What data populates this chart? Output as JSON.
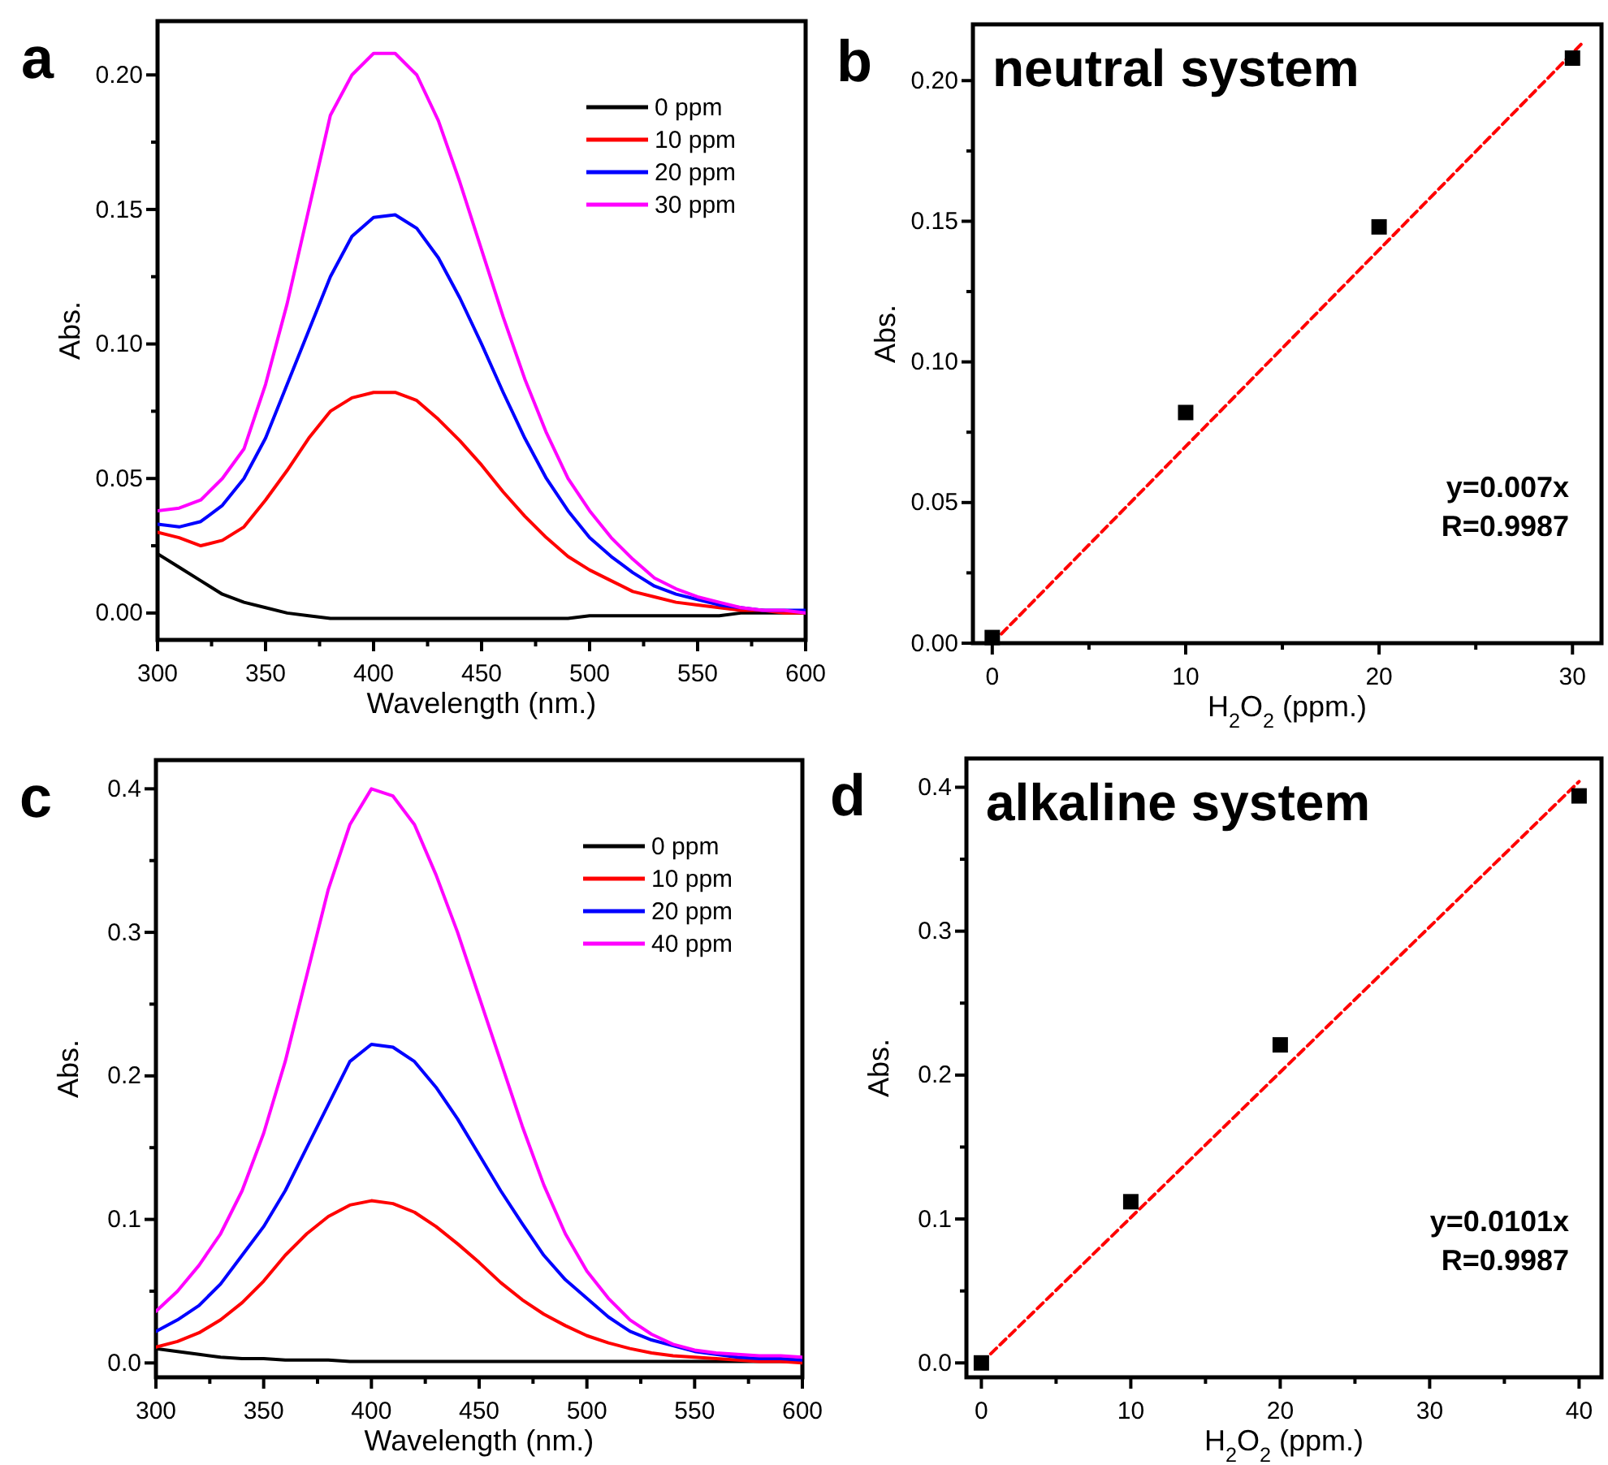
{
  "chart_data": [
    {
      "type": "line",
      "xlabel": "Wavelength (nm.)",
      "ylabel": "Abs.",
      "annotations": [
        "a"
      ],
      "legend": "top right",
      "x": [
        300,
        310,
        320,
        330,
        340,
        350,
        360,
        370,
        380,
        390,
        400,
        410,
        420,
        430,
        440,
        450,
        460,
        470,
        480,
        490,
        500,
        510,
        520,
        530,
        540,
        550,
        560,
        570,
        580,
        590,
        600
      ],
      "xlim": [
        300,
        600
      ],
      "ylim": [
        -0.01,
        0.22
      ],
      "xticks": [
        300,
        {
          "value": 325,
          "label": null
        },
        350,
        {
          "value": 375,
          "label": null
        },
        400,
        {
          "value": 425,
          "label": null
        },
        450,
        {
          "value": 475,
          "label": null
        },
        500,
        {
          "value": 525,
          "label": null
        },
        550,
        {
          "value": 575,
          "label": null
        },
        {
          "value": 600,
          "label": "600"
        }
      ],
      "yticks": [
        {
          "value": 0,
          "label": "0.00"
        },
        {
          "value": 0.025,
          "label": null
        },
        {
          "value": 0.05,
          "label": "0.05"
        },
        {
          "value": 0.075,
          "label": null
        },
        {
          "value": 0.1,
          "label": "0.10"
        },
        {
          "value": 0.125,
          "label": null
        },
        {
          "value": 0.15,
          "label": "0.15"
        },
        {
          "value": 0.175,
          "label": null
        },
        {
          "value": 0.2,
          "label": "0.20"
        }
      ],
      "series": [
        {
          "name": "0 ppm",
          "color": "#000000",
          "values": [
            0.022,
            0.017,
            0.012,
            0.007,
            0.004,
            0.002,
            0,
            -0.001,
            -0.002,
            -0.002,
            -0.002,
            -0.002,
            -0.002,
            -0.002,
            -0.002,
            -0.002,
            -0.002,
            -0.002,
            -0.002,
            -0.002,
            -0.001,
            -0.001,
            -0.001,
            -0.001,
            -0.001,
            -0.001,
            -0.001,
            0,
            0,
            0,
            0
          ]
        },
        {
          "name": "10 ppm",
          "color": "#ff0000",
          "values": [
            0.03,
            0.028,
            0.025,
            0.027,
            0.032,
            0.042,
            0.053,
            0.065,
            0.075,
            0.08,
            0.082,
            0.082,
            0.079,
            0.072,
            0.064,
            0.055,
            0.045,
            0.036,
            0.028,
            0.021,
            0.016,
            0.012,
            0.008,
            0.006,
            0.004,
            0.003,
            0.002,
            0.001,
            0.001,
            0,
            0
          ]
        },
        {
          "name": "20 ppm",
          "color": "#0000ff",
          "values": [
            0.033,
            0.032,
            0.034,
            0.04,
            0.05,
            0.065,
            0.085,
            0.105,
            0.125,
            0.14,
            0.147,
            0.148,
            0.143,
            0.132,
            0.117,
            0.1,
            0.082,
            0.065,
            0.05,
            0.038,
            0.028,
            0.021,
            0.015,
            0.01,
            0.007,
            0.005,
            0.003,
            0.002,
            0.001,
            0.001,
            0.001
          ]
        },
        {
          "name": "30 ppm",
          "color": "#ff00ff",
          "values": [
            0.038,
            0.039,
            0.042,
            0.05,
            0.061,
            0.085,
            0.115,
            0.15,
            0.185,
            0.2,
            0.208,
            0.208,
            0.2,
            0.183,
            0.16,
            0.135,
            0.11,
            0.087,
            0.067,
            0.05,
            0.038,
            0.028,
            0.02,
            0.013,
            0.009,
            0.006,
            0.004,
            0.002,
            0.001,
            0.001,
            0
          ]
        }
      ]
    },
    {
      "type": "scatter",
      "title": "neutral system",
      "xlabel": "H$_{2}$O$_{2}$ (ppm.)",
      "ylabel": "Abs.",
      "annotations": [
        "b",
        "y=0.007x",
        "R=0.9987"
      ],
      "xlim": [
        -1,
        31.5
      ],
      "ylim": [
        0,
        0.22
      ],
      "xticks": [
        0,
        {
          "value": 5,
          "label": null
        },
        10,
        {
          "value": 15,
          "label": null
        },
        20,
        {
          "value": 25,
          "label": null
        },
        30
      ],
      "yticks": [
        {
          "value": 0,
          "label": "0.00"
        },
        {
          "value": 0.025,
          "label": null
        },
        {
          "value": 0.05,
          "label": "0.05"
        },
        {
          "value": 0.075,
          "label": null
        },
        {
          "value": 0.1,
          "label": "0.10"
        },
        {
          "value": 0.125,
          "label": null
        },
        {
          "value": 0.15,
          "label": "0.15"
        },
        {
          "value": 0.175,
          "label": null
        },
        {
          "value": 0.2,
          "label": "0.20"
        }
      ],
      "series": [
        {
          "color": "#000000",
          "marker": "square",
          "x": [
            0,
            10,
            20,
            30
          ],
          "values": [
            0.002,
            0.082,
            0.148,
            0.208
          ]
        },
        {
          "type": "line",
          "color": "#ff0000",
          "line_style": "dashed",
          "x": [
            0,
            30.6
          ],
          "values": [
            0,
            0.214
          ]
        }
      ]
    },
    {
      "type": "line",
      "xlabel": "Wavelength (nm.)",
      "ylabel": "Abs.",
      "annotations": [
        "c"
      ],
      "legend": "top right",
      "x": [
        300,
        310,
        320,
        330,
        340,
        350,
        360,
        370,
        380,
        390,
        400,
        410,
        420,
        430,
        440,
        450,
        460,
        470,
        480,
        490,
        500,
        510,
        520,
        530,
        540,
        550,
        560,
        570,
        580,
        590,
        600
      ],
      "xlim": [
        300,
        600
      ],
      "ylim": [
        -0.01,
        0.42
      ],
      "xticks": [
        300,
        {
          "value": 325,
          "label": null
        },
        350,
        {
          "value": 375,
          "label": null
        },
        400,
        {
          "value": 425,
          "label": null
        },
        450,
        {
          "value": 475,
          "label": null
        },
        500,
        {
          "value": 525,
          "label": null
        },
        550,
        {
          "value": 575,
          "label": null
        },
        600
      ],
      "yticks": [
        {
          "value": 0,
          "label": "0.0"
        },
        {
          "value": 0.05,
          "label": null
        },
        0.1,
        {
          "value": 0.15,
          "label": null
        },
        0.2,
        {
          "value": 0.25,
          "label": null
        },
        0.3,
        {
          "value": 0.35,
          "label": null
        },
        0.4
      ],
      "series": [
        {
          "name": "0 ppm",
          "color": "#000000",
          "values": [
            0.01,
            0.008,
            0.006,
            0.004,
            0.003,
            0.003,
            0.002,
            0.002,
            0.002,
            0.001,
            0.001,
            0.001,
            0.001,
            0.001,
            0.001,
            0.001,
            0.001,
            0.001,
            0.001,
            0.001,
            0.001,
            0.001,
            0.001,
            0.001,
            0.001,
            0.001,
            0.001,
            0.001,
            0.001,
            0.001,
            0.001
          ]
        },
        {
          "name": "10 ppm",
          "color": "#ff0000",
          "values": [
            0.011,
            0.015,
            0.021,
            0.03,
            0.042,
            0.057,
            0.075,
            0.09,
            0.102,
            0.11,
            0.113,
            0.111,
            0.105,
            0.095,
            0.083,
            0.07,
            0.056,
            0.044,
            0.034,
            0.026,
            0.019,
            0.014,
            0.01,
            0.007,
            0.005,
            0.004,
            0.003,
            0.002,
            0.001,
            0.001,
            0
          ]
        },
        {
          "name": "20 ppm",
          "color": "#0000ff",
          "values": [
            0.022,
            0.03,
            0.04,
            0.055,
            0.075,
            0.095,
            0.12,
            0.15,
            0.18,
            0.21,
            0.222,
            0.22,
            0.21,
            0.192,
            0.17,
            0.145,
            0.12,
            0.097,
            0.075,
            0.058,
            0.045,
            0.032,
            0.022,
            0.016,
            0.012,
            0.008,
            0.006,
            0.004,
            0.003,
            0.003,
            0.002
          ]
        },
        {
          "name": "40 ppm",
          "color": "#ff00ff",
          "values": [
            0.036,
            0.05,
            0.068,
            0.09,
            0.12,
            0.16,
            0.21,
            0.27,
            0.33,
            0.375,
            0.4,
            0.395,
            0.375,
            0.34,
            0.3,
            0.255,
            0.21,
            0.165,
            0.124,
            0.09,
            0.064,
            0.045,
            0.03,
            0.02,
            0.013,
            0.009,
            0.007,
            0.006,
            0.005,
            0.005,
            0.004
          ]
        }
      ]
    },
    {
      "type": "scatter",
      "title": "alkaline system",
      "xlabel": "H$_{2}$O$_{2}$ (ppm.)",
      "ylabel": "Abs.",
      "annotations": [
        "d",
        "y=0.0101x",
        "R=0.9987"
      ],
      "xlim": [
        -1,
        41.5
      ],
      "ylim": [
        -0.01,
        0.42
      ],
      "xticks": [
        0,
        {
          "value": 5,
          "label": null
        },
        10,
        {
          "value": 15,
          "label": null
        },
        20,
        {
          "value": 25,
          "label": null
        },
        30,
        {
          "value": 35,
          "label": null
        },
        40
      ],
      "yticks": [
        {
          "value": 0,
          "label": "0.0"
        },
        {
          "value": 0.05,
          "label": null
        },
        0.1,
        {
          "value": 0.15,
          "label": null
        },
        0.2,
        {
          "value": 0.25,
          "label": null
        },
        0.3,
        {
          "value": 0.35,
          "label": null
        },
        0.4
      ],
      "series": [
        {
          "color": "#000000",
          "marker": "square",
          "x": [
            0,
            10,
            20,
            40
          ],
          "values": [
            0,
            0.112,
            0.221,
            0.394
          ]
        },
        {
          "type": "line",
          "color": "#ff0000",
          "line_style": "dashed",
          "x": [
            0,
            40
          ],
          "values": [
            0,
            0.404
          ]
        }
      ]
    }
  ]
}
